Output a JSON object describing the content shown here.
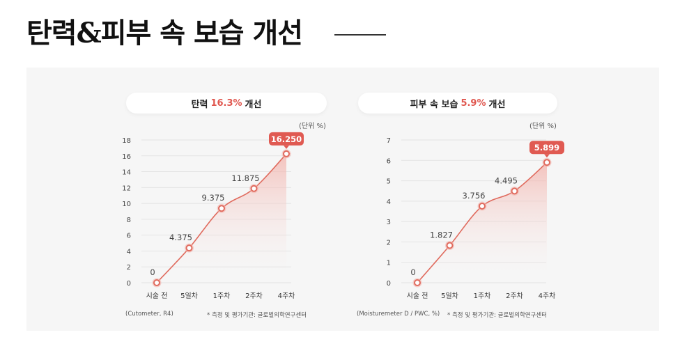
{
  "page_title": "탄력&피부 속 보습 개선",
  "chart_data": [
    {
      "type": "area",
      "header": {
        "prefix": "탄력",
        "highlight": "16.3%",
        "suffix": "개선"
      },
      "unit_label": "(단위 %)",
      "categories": [
        "시술 전",
        "5일차",
        "1주차",
        "2주차",
        "4주차"
      ],
      "values": [
        0,
        4.375,
        9.375,
        11.875,
        16.25
      ],
      "value_labels": [
        "0",
        "4.375",
        "9.375",
        "11.875",
        "16.250"
      ],
      "yticks": [
        0,
        2,
        4,
        6,
        8,
        10,
        12,
        14,
        16,
        18
      ],
      "ylim": [
        0,
        18
      ],
      "footnote_left": "(Cutometer, R4)",
      "footnote_right": "* 측정 및 평가기관: 글로벌의학연구센터",
      "colors": {
        "line": "#e06b5e",
        "highlight": "#e0574f",
        "badge": "#e05a52"
      }
    },
    {
      "type": "area",
      "header": {
        "prefix": "피부 속 보습",
        "highlight": "5.9%",
        "suffix": "개선"
      },
      "unit_label": "(단위 %)",
      "categories": [
        "시술 전",
        "5일차",
        "1주차",
        "2주차",
        "4주차"
      ],
      "values": [
        0,
        1.827,
        3.756,
        4.495,
        5.899
      ],
      "value_labels": [
        "0",
        "1.827",
        "3.756",
        "4.495",
        "5.899"
      ],
      "yticks": [
        0,
        1,
        2,
        3,
        4,
        5,
        6,
        7
      ],
      "ylim": [
        0,
        7
      ],
      "footnote_left": "(Moisturemeter D / PWC, %)",
      "footnote_right": "* 측정 및 평가기관: 글로벌의학연구센터",
      "colors": {
        "line": "#e06b5e",
        "highlight": "#e0574f",
        "badge": "#e05a52"
      }
    }
  ]
}
